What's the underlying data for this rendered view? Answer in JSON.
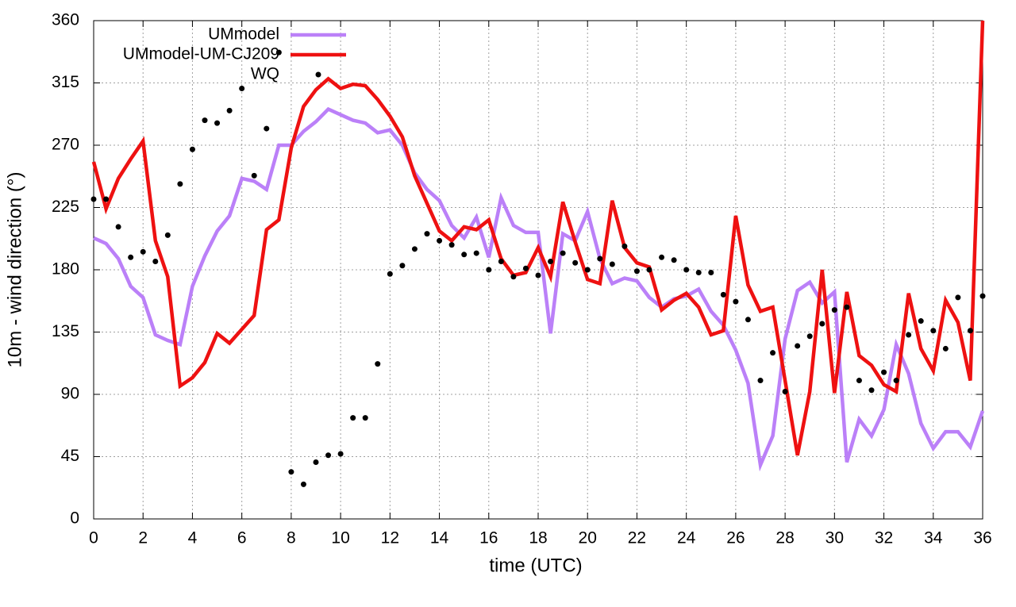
{
  "chart_data": {
    "type": "line",
    "xlabel": "time (UTC)",
    "ylabel": "10m - wind direction (°)",
    "x": [
      0,
      0.5,
      1,
      1.5,
      2,
      2.5,
      3,
      3.5,
      4,
      4.5,
      5,
      5.5,
      6,
      6.5,
      7,
      7.5,
      8,
      8.5,
      9,
      9.5,
      10,
      10.5,
      11,
      11.5,
      12,
      12.5,
      13,
      13.5,
      14,
      14.5,
      15,
      15.5,
      16,
      16.5,
      17,
      17.5,
      18,
      18.5,
      19,
      19.5,
      20,
      20.5,
      21,
      21.5,
      22,
      22.5,
      23,
      23.5,
      24,
      24.5,
      25,
      25.5,
      26,
      26.5,
      27,
      27.5,
      28,
      28.5,
      29,
      29.5,
      30,
      30.5,
      31,
      31.5,
      32,
      32.5,
      33,
      33.5,
      34,
      34.5,
      35,
      35.5,
      36
    ],
    "series": [
      {
        "name": "UMmodel",
        "color": "#bb80f8",
        "style": "line",
        "values": [
          203,
          199,
          188,
          168,
          160,
          133,
          129,
          126,
          168,
          190,
          208,
          219,
          246,
          244,
          238,
          270,
          270,
          280,
          287,
          296,
          292,
          288,
          286,
          279,
          281,
          270,
          250,
          238,
          230,
          212,
          203,
          218,
          189,
          232,
          212,
          207,
          207,
          134,
          206,
          201,
          222,
          188,
          170,
          174,
          172,
          160,
          153,
          159,
          161,
          166,
          150,
          140,
          122,
          98,
          39,
          60,
          130,
          165,
          171,
          156,
          164,
          41,
          72,
          60,
          79,
          126,
          105,
          69,
          51,
          63,
          63,
          52,
          78
        ]
      },
      {
        "name": "UMmodel-UM-CJ209",
        "color": "#ee1111",
        "style": "line",
        "values": [
          258,
          224,
          246,
          260,
          273,
          201,
          175,
          96,
          102,
          113,
          134,
          127,
          137,
          147,
          209,
          216,
          268,
          298,
          310,
          318,
          311,
          314,
          313,
          303,
          291,
          276,
          248,
          228,
          208,
          201,
          211,
          209,
          216,
          188,
          176,
          178,
          196,
          175,
          229,
          200,
          173,
          170,
          230,
          196,
          185,
          182,
          151,
          158,
          163,
          153,
          133,
          136,
          219,
          169,
          150,
          153,
          100,
          46,
          92,
          180,
          91,
          164,
          118,
          111,
          97,
          92,
          163,
          123,
          107,
          158,
          142,
          100,
          360
        ]
      },
      {
        "name": "WQ",
        "color": "#000000",
        "style": "points",
        "values": [
          231,
          231,
          211,
          189,
          193,
          186,
          205,
          242,
          267,
          288,
          286,
          295,
          311,
          248,
          282,
          337,
          34,
          25,
          41,
          46,
          47,
          73,
          73,
          112,
          177,
          183,
          195,
          206,
          201,
          198,
          191,
          192,
          180,
          186,
          175,
          181,
          176,
          186,
          192,
          185,
          180,
          188,
          184,
          197,
          179,
          180,
          189,
          187,
          180,
          178,
          178,
          162,
          157,
          144,
          100,
          120,
          92,
          125,
          132,
          141,
          151,
          153,
          100,
          93,
          106,
          100,
          133,
          143,
          136,
          123,
          160,
          136,
          161
        ]
      }
    ],
    "xlim": [
      0,
      36
    ],
    "xticks": [
      0,
      2,
      4,
      6,
      8,
      10,
      12,
      14,
      16,
      18,
      20,
      22,
      24,
      26,
      28,
      30,
      32,
      34,
      36
    ],
    "ylim": [
      0,
      360
    ],
    "yticks": [
      0,
      45,
      90,
      135,
      180,
      225,
      270,
      315,
      360
    ],
    "grid": true,
    "legend": "top left"
  }
}
